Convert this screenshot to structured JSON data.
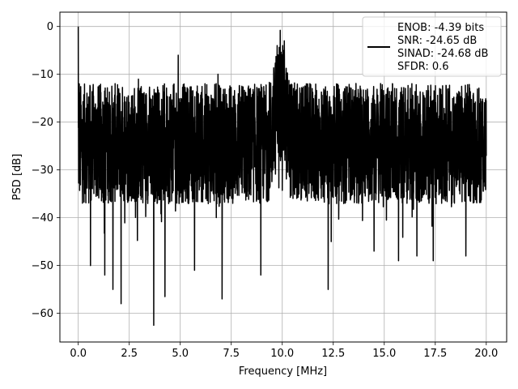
{
  "chart_data": {
    "type": "line",
    "title": "",
    "xlabel": "Frequency [MHz]",
    "ylabel": "PSD [dB]",
    "xlim": [
      -0.9,
      21.0
    ],
    "ylim": [
      -66,
      3
    ],
    "grid": true,
    "legend_position": "top-right",
    "x_ticks": [
      0.0,
      2.5,
      5.0,
      7.5,
      10.0,
      12.5,
      15.0,
      17.5,
      20.0
    ],
    "x_tick_labels": [
      "0.0",
      "2.5",
      "5.0",
      "7.5",
      "10.0",
      "12.5",
      "15.0",
      "17.5",
      "20.0"
    ],
    "y_ticks": [
      0,
      -10,
      -20,
      -30,
      -40,
      -50,
      -60
    ],
    "y_tick_labels": [
      "0",
      "−10",
      "−20",
      "−30",
      "−40",
      "−50",
      "−60"
    ],
    "series": [
      {
        "color": "#000000",
        "x_range": [
          0,
          20
        ],
        "noise_floor_db": -24.5,
        "upper_envelope_db": -14,
        "lower_envelope_db": -38,
        "peaks": [
          {
            "x": 0.0,
            "y": 0
          },
          {
            "x": 0.05,
            "y": -12
          },
          {
            "x": 2.95,
            "y": -11
          },
          {
            "x": 4.9,
            "y": -6
          },
          {
            "x": 6.85,
            "y": -10
          },
          {
            "x": 9.9,
            "y": -0.8
          },
          {
            "x": 9.75,
            "y": -4
          },
          {
            "x": 10.1,
            "y": -3
          }
        ],
        "dips": [
          {
            "x": 3.7,
            "y": -62.5
          },
          {
            "x": 4.25,
            "y": -56.5
          },
          {
            "x": 1.7,
            "y": -55
          },
          {
            "x": 2.1,
            "y": -58
          },
          {
            "x": 1.3,
            "y": -52
          },
          {
            "x": 7.05,
            "y": -57
          },
          {
            "x": 8.95,
            "y": -52
          },
          {
            "x": 12.25,
            "y": -55
          },
          {
            "x": 12.4,
            "y": -45
          },
          {
            "x": 5.7,
            "y": -51
          },
          {
            "x": 0.6,
            "y": -50
          },
          {
            "x": 14.5,
            "y": -47
          },
          {
            "x": 15.7,
            "y": -49
          },
          {
            "x": 17.4,
            "y": -49
          },
          {
            "x": 19.0,
            "y": -48
          },
          {
            "x": 16.6,
            "y": -48
          }
        ]
      }
    ],
    "legend": {
      "lines": [
        "ENOB: -4.39 bits",
        "SNR: -24.65 dB",
        "SINAD: -24.68 dB",
        "SFDR: 0.6"
      ]
    }
  }
}
